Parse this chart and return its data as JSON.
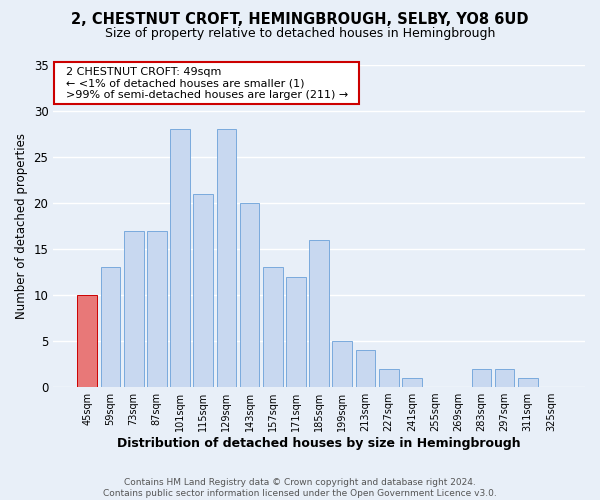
{
  "title": "2, CHESTNUT CROFT, HEMINGBROUGH, SELBY, YO8 6UD",
  "subtitle": "Size of property relative to detached houses in Hemingbrough",
  "xlabel": "Distribution of detached houses by size in Hemingbrough",
  "ylabel": "Number of detached properties",
  "bar_color": "#c8d8f0",
  "bar_edge_color": "#7aaadd",
  "background_color": "#e8eff8",
  "bin_labels": [
    "45sqm",
    "59sqm",
    "73sqm",
    "87sqm",
    "101sqm",
    "115sqm",
    "129sqm",
    "143sqm",
    "157sqm",
    "171sqm",
    "185sqm",
    "199sqm",
    "213sqm",
    "227sqm",
    "241sqm",
    "255sqm",
    "269sqm",
    "283sqm",
    "297sqm",
    "311sqm",
    "325sqm"
  ],
  "bar_heights": [
    10,
    13,
    17,
    17,
    28,
    21,
    28,
    20,
    13,
    12,
    16,
    5,
    4,
    2,
    1,
    0,
    0,
    2,
    2,
    1,
    0
  ],
  "ylim": [
    0,
    35
  ],
  "yticks": [
    0,
    5,
    10,
    15,
    20,
    25,
    30,
    35
  ],
  "annotation_title": "2 CHESTNUT CROFT: 49sqm",
  "annotation_line1": "← <1% of detached houses are smaller (1)",
  "annotation_line2": ">99% of semi-detached houses are larger (211) →",
  "annotation_box_color": "#ffffff",
  "annotation_box_edge": "#cc0000",
  "highlight_bar_index": 0,
  "highlight_bar_color": "#e87878",
  "highlight_bar_edge": "#cc0000",
  "footer_line1": "Contains HM Land Registry data © Crown copyright and database right 2024.",
  "footer_line2": "Contains public sector information licensed under the Open Government Licence v3.0.",
  "title_fontsize": 10.5,
  "subtitle_fontsize": 9,
  "ylabel_fontsize": 8.5,
  "xlabel_fontsize": 9
}
